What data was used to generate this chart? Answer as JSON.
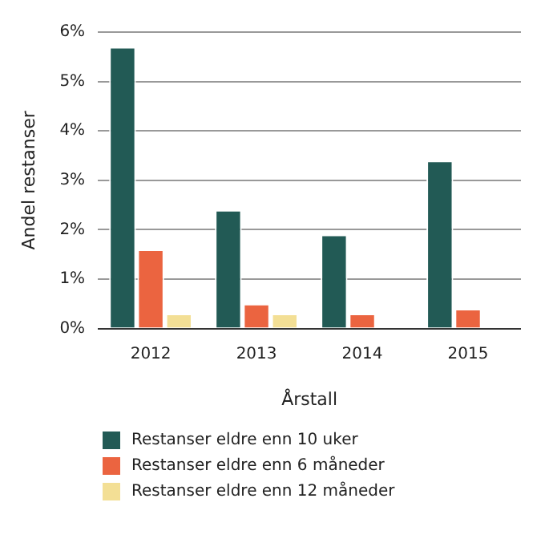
{
  "chart_data": {
    "type": "bar",
    "xlabel": "Årstall",
    "ylabel": "Andel restanser",
    "categories": [
      "2012",
      "2013",
      "2014",
      "2015"
    ],
    "series": [
      {
        "name": "Restanser eldre enn 10 uker",
        "color": "#225a55",
        "values": [
          5.7,
          2.4,
          1.9,
          3.4
        ]
      },
      {
        "name": "Restanser eldre enn 6 måneder",
        "color": "#eb6440",
        "values": [
          1.6,
          0.5,
          0.3,
          0.4
        ]
      },
      {
        "name": "Restanser eldre enn 12 måneder",
        "color": "#f3df95",
        "values": [
          0.3,
          0.3,
          null,
          null
        ]
      }
    ],
    "ylim": [
      0,
      6
    ],
    "yticks": [
      {
        "value": 0,
        "label": "0%"
      },
      {
        "value": 1,
        "label": "1%"
      },
      {
        "value": 2,
        "label": "2%"
      },
      {
        "value": 3,
        "label": "3%"
      },
      {
        "value": 4,
        "label": "4%"
      },
      {
        "value": 5,
        "label": "5%"
      },
      {
        "value": 6,
        "label": "6%"
      }
    ],
    "grid": "y",
    "legend": "bottom"
  }
}
